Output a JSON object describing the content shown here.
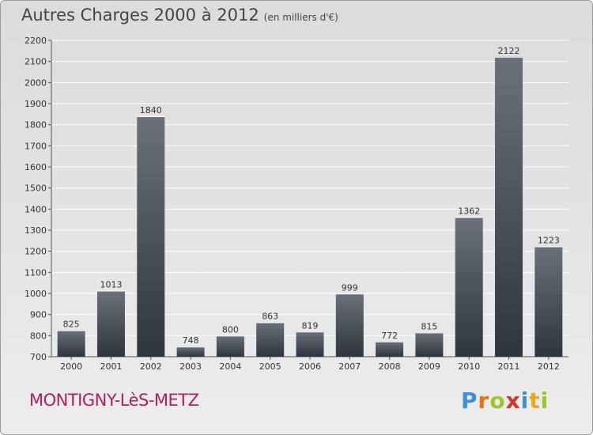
{
  "header": {
    "title": "Autres Charges 2000 à 2012",
    "subtitle": "(en milliers d'€)"
  },
  "footer": {
    "city": "MONTIGNY-LèS-METZ",
    "logo_letters": [
      "P",
      "r",
      "o",
      "x",
      "i",
      "t",
      "i"
    ],
    "logo_colors": [
      "#3e8ed8",
      "#e8731c",
      "#9bc72b",
      "#d8332c",
      "#3e8ed8",
      "#e8a81c",
      "#9bc72b"
    ]
  },
  "chart_data": {
    "type": "bar",
    "title": "Autres Charges 2000 à 2012",
    "categories": [
      "2000",
      "2001",
      "2002",
      "2003",
      "2004",
      "2005",
      "2006",
      "2007",
      "2008",
      "2009",
      "2010",
      "2011",
      "2012"
    ],
    "values": [
      825,
      1013,
      1840,
      748,
      800,
      863,
      819,
      999,
      772,
      815,
      1362,
      2122,
      1223
    ],
    "ylim": [
      700,
      2200
    ],
    "yticks": [
      700,
      800,
      900,
      1000,
      1100,
      1200,
      1300,
      1400,
      1500,
      1600,
      1700,
      1800,
      1900,
      2000,
      2100,
      2200
    ],
    "grid": true,
    "colors": {
      "bar_top": "#6a717a",
      "bar_bottom": "#2f353c",
      "grid": "#ffffff"
    }
  }
}
